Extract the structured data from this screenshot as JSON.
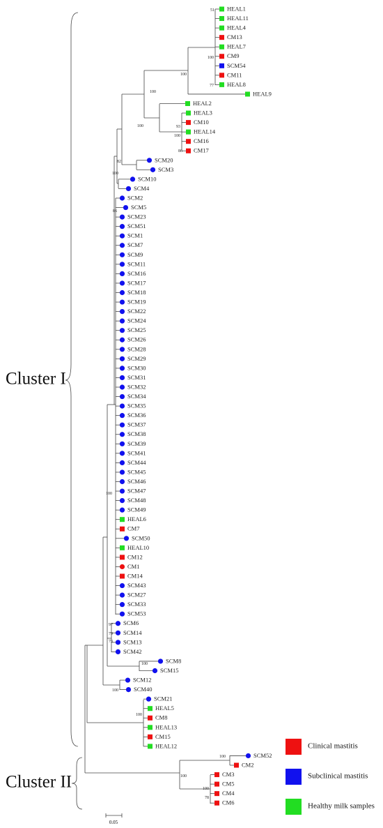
{
  "leaves": [
    {
      "label": "HEAL1",
      "color": "#22dd22",
      "shape": "square"
    },
    {
      "label": "HEAL11",
      "color": "#22dd22",
      "shape": "square"
    },
    {
      "label": "HEAL4",
      "color": "#22dd22",
      "shape": "square"
    },
    {
      "label": "CM13",
      "color": "#ee1111",
      "shape": "square"
    },
    {
      "label": "HEAL7",
      "color": "#22dd22",
      "shape": "square"
    },
    {
      "label": "CM9",
      "color": "#ee1111",
      "shape": "square"
    },
    {
      "label": "SCM54",
      "color": "#1111ee",
      "shape": "square"
    },
    {
      "label": "CM11",
      "color": "#ee1111",
      "shape": "square"
    },
    {
      "label": "HEAL8",
      "color": "#22dd22",
      "shape": "square"
    },
    {
      "label": "HEAL9",
      "color": "#22dd22",
      "shape": "square"
    },
    {
      "label": "HEAL2",
      "color": "#22dd22",
      "shape": "square"
    },
    {
      "label": "HEAL3",
      "color": "#22dd22",
      "shape": "square"
    },
    {
      "label": "CM10",
      "color": "#ee1111",
      "shape": "square"
    },
    {
      "label": "HEAL14",
      "color": "#22dd22",
      "shape": "square"
    },
    {
      "label": "CM16",
      "color": "#ee1111",
      "shape": "square"
    },
    {
      "label": "CM17",
      "color": "#ee1111",
      "shape": "square"
    },
    {
      "label": "SCM20",
      "color": "#1111ee",
      "shape": "circle"
    },
    {
      "label": "SCM3",
      "color": "#1111ee",
      "shape": "circle"
    },
    {
      "label": "SCM10",
      "color": "#1111ee",
      "shape": "circle"
    },
    {
      "label": "SCM4",
      "color": "#1111ee",
      "shape": "circle"
    },
    {
      "label": "SCM2",
      "color": "#1111ee",
      "shape": "circle"
    },
    {
      "label": "SCM5",
      "color": "#1111ee",
      "shape": "circle"
    },
    {
      "label": "SCM23",
      "color": "#1111ee",
      "shape": "circle"
    },
    {
      "label": "SCM51",
      "color": "#1111ee",
      "shape": "circle"
    },
    {
      "label": "SCM1",
      "color": "#1111ee",
      "shape": "circle"
    },
    {
      "label": "SCM7",
      "color": "#1111ee",
      "shape": "circle"
    },
    {
      "label": "SCM9",
      "color": "#1111ee",
      "shape": "circle"
    },
    {
      "label": "SCM11",
      "color": "#1111ee",
      "shape": "circle"
    },
    {
      "label": "SCM16",
      "color": "#1111ee",
      "shape": "circle"
    },
    {
      "label": "SCM17",
      "color": "#1111ee",
      "shape": "circle"
    },
    {
      "label": "SCM18",
      "color": "#1111ee",
      "shape": "circle"
    },
    {
      "label": "SCM19",
      "color": "#1111ee",
      "shape": "circle"
    },
    {
      "label": "SCM22",
      "color": "#1111ee",
      "shape": "circle"
    },
    {
      "label": "SCM24",
      "color": "#1111ee",
      "shape": "circle"
    },
    {
      "label": "SCM25",
      "color": "#1111ee",
      "shape": "circle"
    },
    {
      "label": "SCM26",
      "color": "#1111ee",
      "shape": "circle"
    },
    {
      "label": "SCM28",
      "color": "#1111ee",
      "shape": "circle"
    },
    {
      "label": "SCM29",
      "color": "#1111ee",
      "shape": "circle"
    },
    {
      "label": "SCM30",
      "color": "#1111ee",
      "shape": "circle"
    },
    {
      "label": "SCM31",
      "color": "#1111ee",
      "shape": "circle"
    },
    {
      "label": "SCM32",
      "color": "#1111ee",
      "shape": "circle"
    },
    {
      "label": "SCM34",
      "color": "#1111ee",
      "shape": "circle"
    },
    {
      "label": "SCM35",
      "color": "#1111ee",
      "shape": "circle"
    },
    {
      "label": "SCM36",
      "color": "#1111ee",
      "shape": "circle"
    },
    {
      "label": "SCM37",
      "color": "#1111ee",
      "shape": "circle"
    },
    {
      "label": "SCM38",
      "color": "#1111ee",
      "shape": "circle"
    },
    {
      "label": "SCM39",
      "color": "#1111ee",
      "shape": "circle"
    },
    {
      "label": "SCM41",
      "color": "#1111ee",
      "shape": "circle"
    },
    {
      "label": "SCM44",
      "color": "#1111ee",
      "shape": "circle"
    },
    {
      "label": "SCM45",
      "color": "#1111ee",
      "shape": "circle"
    },
    {
      "label": "SCM46",
      "color": "#1111ee",
      "shape": "circle"
    },
    {
      "label": "SCM47",
      "color": "#1111ee",
      "shape": "circle"
    },
    {
      "label": "SCM48",
      "color": "#1111ee",
      "shape": "circle"
    },
    {
      "label": "SCM49",
      "color": "#1111ee",
      "shape": "circle"
    },
    {
      "label": "HEAL6",
      "color": "#22dd22",
      "shape": "square"
    },
    {
      "label": "CM7",
      "color": "#ee1111",
      "shape": "square"
    },
    {
      "label": "SCM50",
      "color": "#1111ee",
      "shape": "circle"
    },
    {
      "label": "HEAL10",
      "color": "#22dd22",
      "shape": "square"
    },
    {
      "label": "CM12",
      "color": "#ee1111",
      "shape": "square"
    },
    {
      "label": "CM1",
      "color": "#ee1111",
      "shape": "circle"
    },
    {
      "label": "CM14",
      "color": "#ee1111",
      "shape": "square"
    },
    {
      "label": "SCM43",
      "color": "#1111ee",
      "shape": "circle"
    },
    {
      "label": "SCM27",
      "color": "#1111ee",
      "shape": "circle"
    },
    {
      "label": "SCM33",
      "color": "#1111ee",
      "shape": "circle"
    },
    {
      "label": "SCM53",
      "color": "#1111ee",
      "shape": "circle"
    },
    {
      "label": "SCM6",
      "color": "#1111ee",
      "shape": "circle"
    },
    {
      "label": "SCM14",
      "color": "#1111ee",
      "shape": "circle"
    },
    {
      "label": "SCM13",
      "color": "#1111ee",
      "shape": "circle"
    },
    {
      "label": "SCM42",
      "color": "#1111ee",
      "shape": "circle"
    },
    {
      "label": "SCM8",
      "color": "#1111ee",
      "shape": "circle"
    },
    {
      "label": "SCM15",
      "color": "#1111ee",
      "shape": "circle"
    },
    {
      "label": "SCM12",
      "color": "#1111ee",
      "shape": "circle"
    },
    {
      "label": "SCM40",
      "color": "#1111ee",
      "shape": "circle"
    },
    {
      "label": "SCM21",
      "color": "#1111ee",
      "shape": "circle"
    },
    {
      "label": "HEAL5",
      "color": "#22dd22",
      "shape": "square"
    },
    {
      "label": "CM8",
      "color": "#ee1111",
      "shape": "square"
    },
    {
      "label": "HEAL13",
      "color": "#22dd22",
      "shape": "square"
    },
    {
      "label": "CM15",
      "color": "#ee1111",
      "shape": "square"
    },
    {
      "label": "HEAL12",
      "color": "#22dd22",
      "shape": "square"
    },
    {
      "label": "SCM52",
      "color": "#1111ee",
      "shape": "circle"
    },
    {
      "label": "CM2",
      "color": "#ee1111",
      "shape": "square"
    },
    {
      "label": "CM3",
      "color": "#ee1111",
      "shape": "square"
    },
    {
      "label": "CM5",
      "color": "#ee1111",
      "shape": "square"
    },
    {
      "label": "CM4",
      "color": "#ee1111",
      "shape": "square"
    },
    {
      "label": "CM6",
      "color": "#ee1111",
      "shape": "square"
    }
  ],
  "bootstrap": [
    51,
    100,
    77,
    100,
    100,
    100,
    93,
    100,
    86,
    82,
    100,
    86,
    100,
    97,
    79,
    73,
    100,
    100,
    100,
    100,
    100,
    100,
    78
  ],
  "clusters": [
    "Cluster I",
    "Cluster II"
  ],
  "legend": [
    {
      "label": "Clinical mastitis",
      "color": "#ee1111"
    },
    {
      "label": "Subclinical mastitis",
      "color": "#1111ee"
    },
    {
      "label": "Healthy milk samples",
      "color": "#22dd22"
    }
  ],
  "scale_bar": "0.05"
}
